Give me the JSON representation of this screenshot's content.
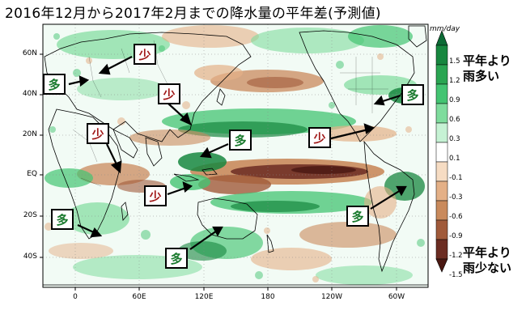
{
  "title": "2016年12月から2017年2月までの降水量の平年差(予測値)",
  "unit": "mm/day",
  "lat_ticks": [
    "60N",
    "40N",
    "20N",
    "EQ",
    "20S",
    "40S"
  ],
  "lon_ticks": [
    "0",
    "60E",
    "120E",
    "180",
    "120W",
    "60W"
  ],
  "colorbar": {
    "ticks": [
      "1.5",
      "1.2",
      "0.9",
      "0.6",
      "0.3",
      "0.1",
      "-0.1",
      "-0.3",
      "-0.6",
      "-0.9",
      "-1.2",
      "-1.5"
    ],
    "colors": [
      "#0c6b35",
      "#17873f",
      "#2aa552",
      "#43c472",
      "#7fdc9d",
      "#c6f2d4",
      "#ffffff",
      "#f6dcc3",
      "#e4b087",
      "#c98a5c",
      "#a05a3a",
      "#6b2c22",
      "#4a1812"
    ],
    "label_top": [
      "平年より",
      "雨多い"
    ],
    "label_bottom": [
      "平年より",
      "雨少ない"
    ]
  },
  "labels": {
    "more": "多",
    "less": "少"
  }
}
